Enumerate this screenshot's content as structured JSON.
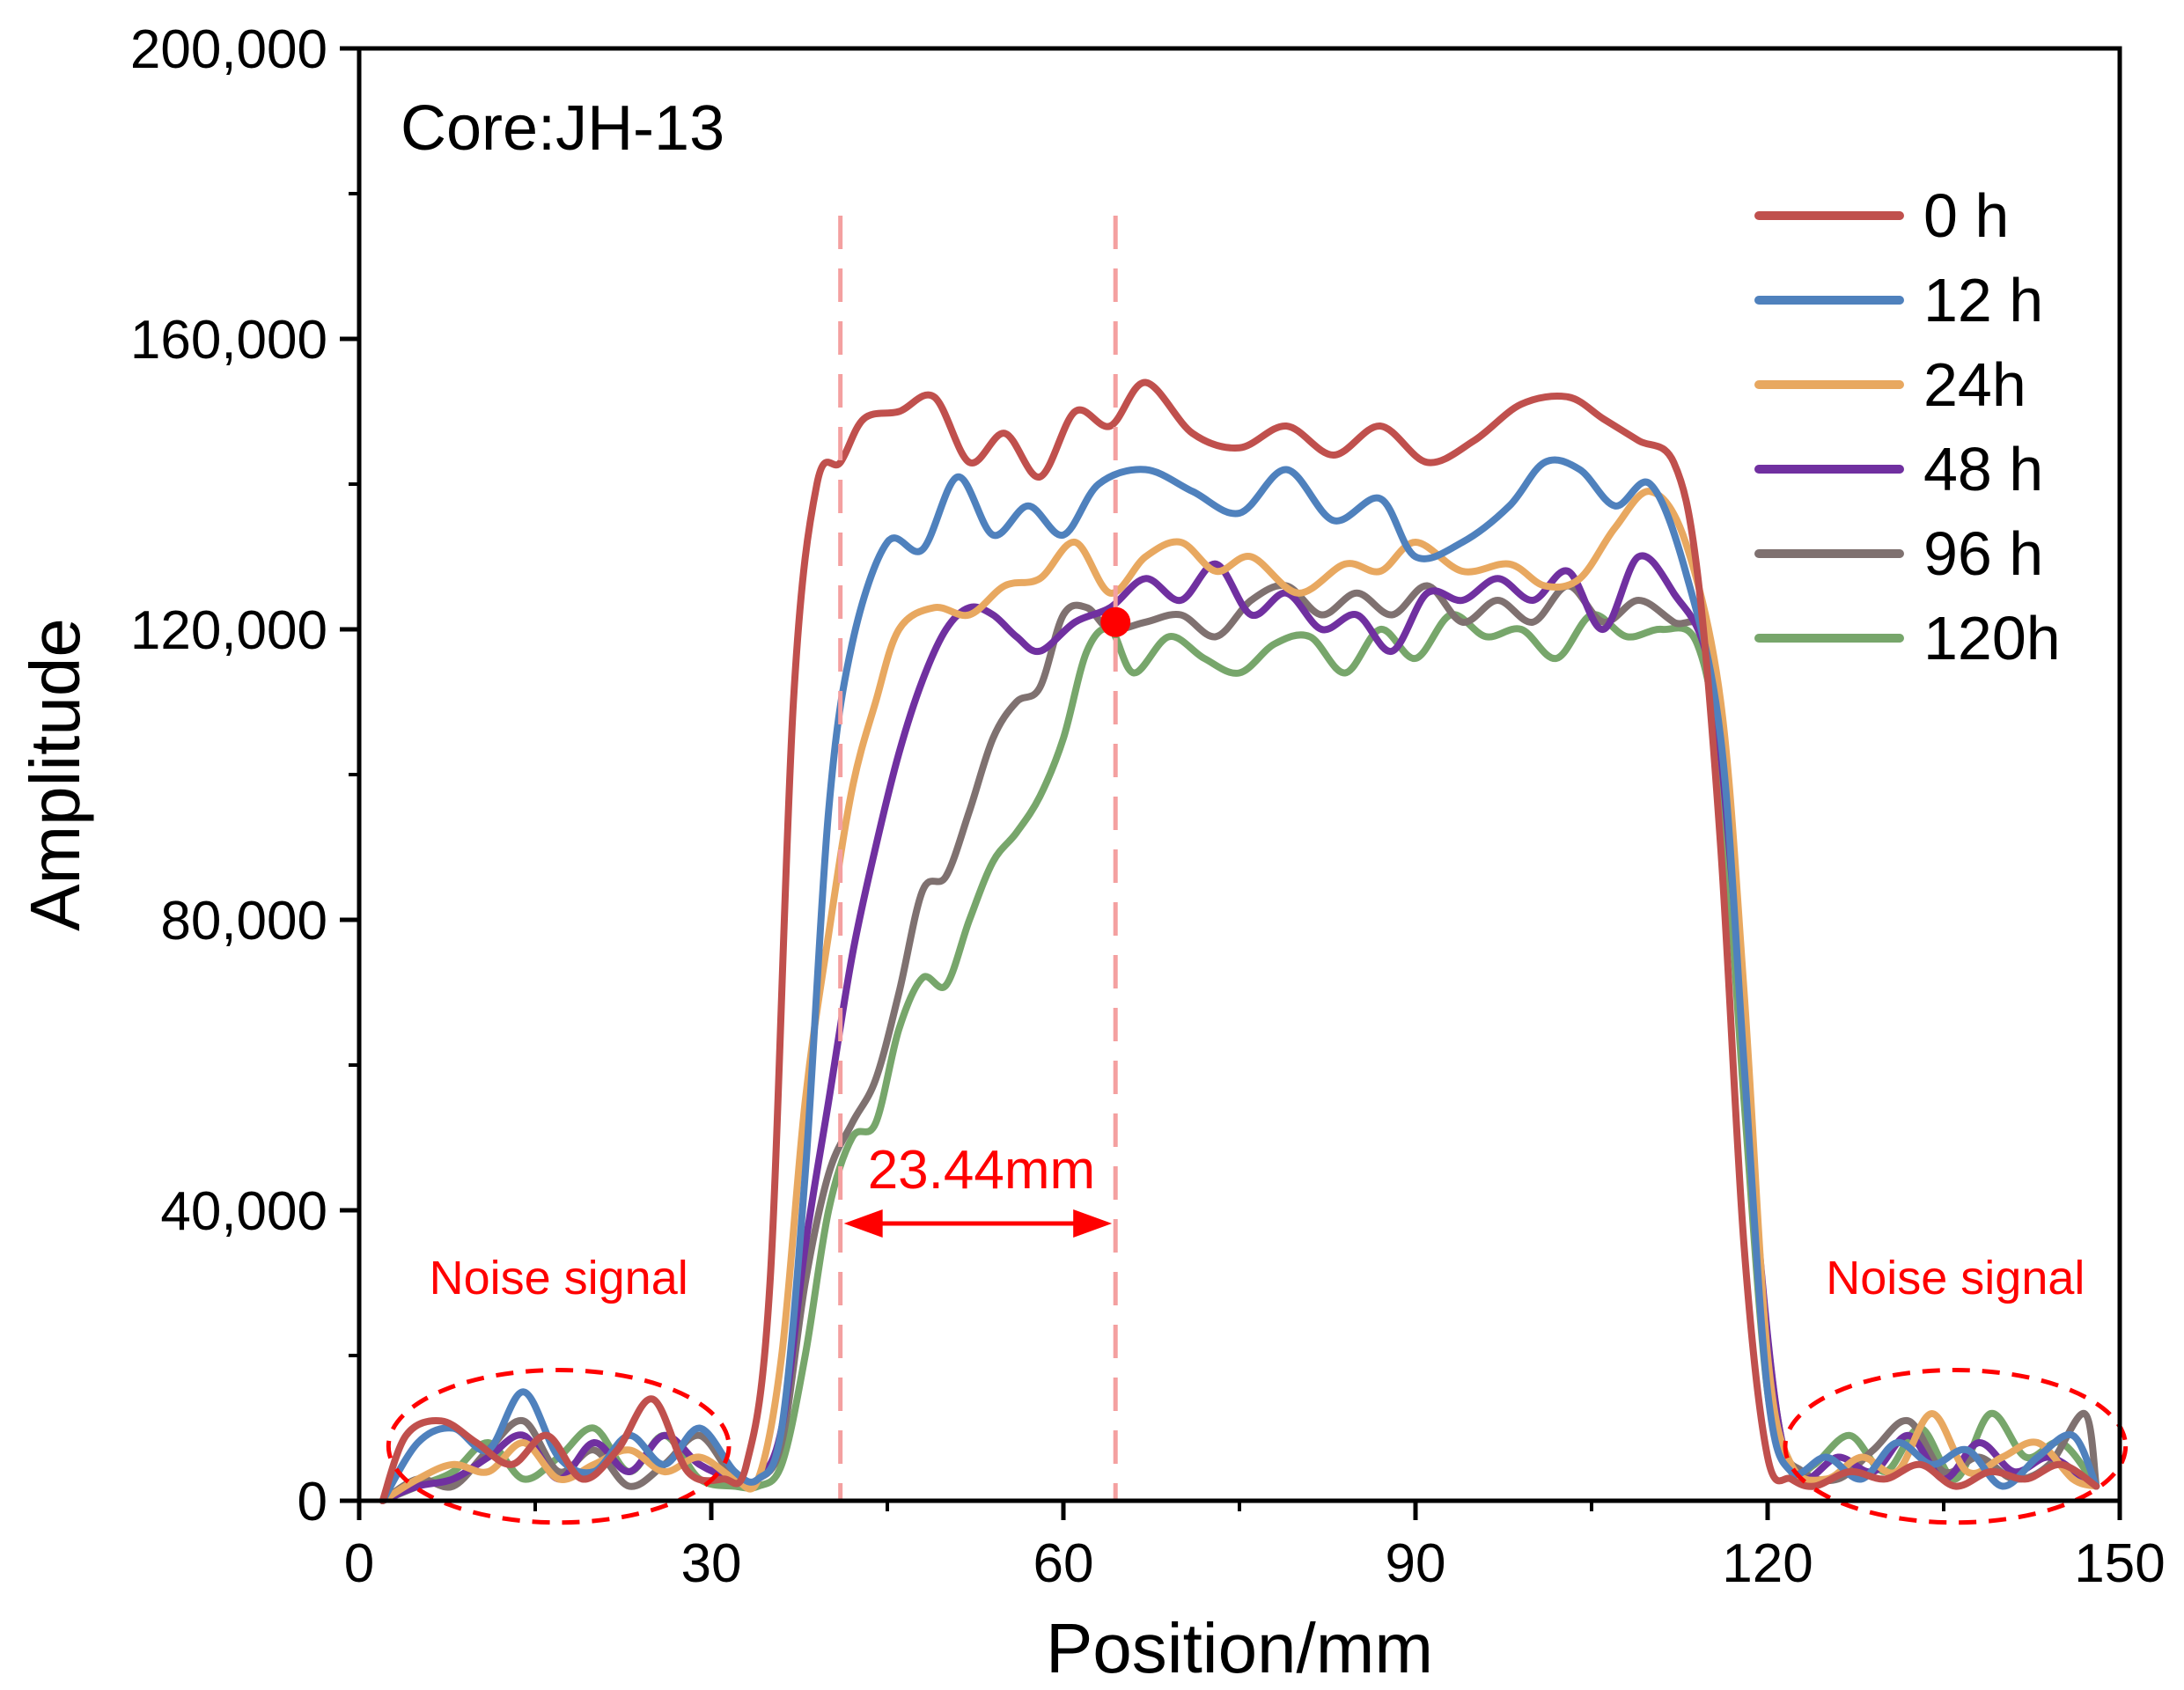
{
  "chart_data": {
    "type": "line",
    "title": "Core:JH-13",
    "xlabel": "Position/mm",
    "ylabel": "Amplitude",
    "xlim": [
      0,
      150
    ],
    "ylim": [
      0,
      200000
    ],
    "xticks": [
      0,
      30,
      60,
      90,
      120,
      150
    ],
    "yticks": [
      0,
      40000,
      80000,
      120000,
      160000,
      200000
    ],
    "xtick_labels": [
      "0",
      "30",
      "60",
      "90",
      "120",
      "150"
    ],
    "ytick_labels": [
      "0",
      "40,000",
      "80,000",
      "120,000",
      "160,000",
      "200,000"
    ],
    "legend_position": "top-right",
    "series": [
      {
        "name": "0 h",
        "color": "#c0504d",
        "x": [
          2,
          4,
          7,
          10,
          13,
          16,
          19,
          22,
          25,
          28,
          31,
          33,
          35,
          37,
          39,
          41,
          43,
          46,
          49,
          52,
          55,
          58,
          61,
          64,
          67,
          71,
          75,
          79,
          83,
          87,
          91,
          95,
          99,
          103,
          106,
          109,
          112,
          114,
          116,
          118,
          120,
          122,
          124,
          127,
          130,
          133,
          136,
          139,
          142,
          145,
          148
        ],
        "y": [
          0,
          9000,
          11000,
          8000,
          5000,
          9000,
          3000,
          7000,
          14000,
          4000,
          3000,
          5000,
          30000,
          110000,
          140000,
          143000,
          149000,
          150000,
          152000,
          143000,
          147000,
          141000,
          150000,
          148000,
          154000,
          147000,
          145000,
          148000,
          144000,
          148000,
          143000,
          146000,
          151000,
          152000,
          149000,
          146000,
          143000,
          128000,
          90000,
          35000,
          6000,
          3000,
          2000,
          4000,
          3000,
          5000,
          2000,
          4000,
          3000,
          5000,
          2000
        ]
      },
      {
        "name": "12 h",
        "color": "#4f81bd",
        "x": [
          2,
          5,
          8,
          11,
          14,
          17,
          20,
          23,
          26,
          29,
          32,
          34,
          36,
          38,
          40,
          42,
          45,
          48,
          51,
          54,
          57,
          60,
          63,
          67,
          71,
          75,
          79,
          83,
          87,
          90,
          94,
          98,
          101,
          104,
          107,
          110,
          113,
          116,
          118,
          120,
          122,
          125,
          128,
          131,
          134,
          137,
          140,
          143,
          146,
          148
        ],
        "y": [
          0,
          8000,
          10000,
          7000,
          15000,
          6000,
          4000,
          9000,
          5000,
          10000,
          4000,
          3000,
          10000,
          45000,
          95000,
          118000,
          132000,
          131000,
          141000,
          133000,
          137000,
          133000,
          140000,
          142000,
          139000,
          136000,
          142000,
          135000,
          138000,
          130000,
          132000,
          137000,
          143000,
          142000,
          137000,
          140000,
          128000,
          105000,
          60000,
          15000,
          4000,
          6000,
          3000,
          8000,
          5000,
          7000,
          2000,
          6000,
          9000,
          2000
        ]
      },
      {
        "name": "24h",
        "color": "#e8a860",
        "x": [
          2,
          5,
          8,
          11,
          14,
          17,
          20,
          23,
          26,
          29,
          32,
          34,
          36,
          38,
          40,
          42,
          44,
          46,
          49,
          52,
          55,
          58,
          61,
          64,
          67,
          70,
          73,
          76,
          80,
          84,
          87,
          90,
          94,
          98,
          101,
          104,
          107,
          110,
          113,
          116,
          118,
          120,
          122,
          125,
          128,
          131,
          134,
          137,
          140,
          143,
          146,
          148
        ],
        "y": [
          0,
          3000,
          5000,
          4000,
          8000,
          3000,
          5000,
          7000,
          4000,
          6000,
          3000,
          3000,
          20000,
          55000,
          78000,
          98000,
          110000,
          120000,
          123000,
          122000,
          126000,
          127000,
          132000,
          125000,
          130000,
          132000,
          128000,
          130000,
          125000,
          129000,
          128000,
          132000,
          128000,
          129000,
          126000,
          127000,
          134000,
          139000,
          132000,
          110000,
          70000,
          20000,
          5000,
          3000,
          6000,
          4000,
          12000,
          4000,
          6000,
          8000,
          3000,
          2000
        ]
      },
      {
        "name": "48 h",
        "color": "#7030a0",
        "x": [
          2,
          5,
          8,
          11,
          14,
          17,
          20,
          23,
          26,
          29,
          32,
          34,
          36,
          38,
          40,
          42,
          44,
          46,
          48,
          50,
          52,
          54,
          56,
          58,
          61,
          64,
          67,
          70,
          73,
          76,
          79,
          82,
          85,
          88,
          91,
          94,
          97,
          100,
          103,
          106,
          109,
          112,
          115,
          117,
          119,
          121,
          123,
          126,
          129,
          132,
          135,
          138,
          141,
          144,
          147,
          148
        ],
        "y": [
          0,
          2000,
          3000,
          6000,
          9000,
          3000,
          8000,
          4000,
          9000,
          5000,
          3000,
          3000,
          10000,
          35000,
          55000,
          75000,
          90000,
          103000,
          113000,
          120000,
          123000,
          122000,
          119000,
          117000,
          121000,
          123000,
          127000,
          124000,
          129000,
          122000,
          125000,
          120000,
          122000,
          117000,
          125000,
          124000,
          127000,
          124000,
          128000,
          120000,
          130000,
          125000,
          115000,
          85000,
          40000,
          10000,
          3000,
          6000,
          4000,
          9000,
          3000,
          8000,
          4000,
          6000,
          3000,
          2000
        ]
      },
      {
        "name": "96 h",
        "color": "#7f7170",
        "x": [
          2,
          5,
          8,
          11,
          14,
          17,
          20,
          23,
          26,
          29,
          32,
          34,
          36,
          38,
          40,
          42,
          44,
          46,
          48,
          50,
          52,
          54,
          56,
          58,
          60,
          62,
          64,
          67,
          70,
          73,
          76,
          79,
          82,
          85,
          88,
          91,
          94,
          97,
          100,
          103,
          106,
          109,
          112,
          115,
          117,
          119,
          121,
          123,
          126,
          129,
          132,
          135,
          138,
          141,
          144,
          147,
          148
        ],
        "y": [
          0,
          3000,
          2000,
          7000,
          11000,
          4000,
          7000,
          2000,
          5000,
          9000,
          3000,
          3000,
          8000,
          30000,
          45000,
          52000,
          58000,
          70000,
          84000,
          86000,
          95000,
          105000,
          110000,
          112000,
          122000,
          123000,
          120000,
          121000,
          122000,
          119000,
          124000,
          126000,
          122000,
          125000,
          122000,
          126000,
          121000,
          124000,
          121000,
          126000,
          121000,
          124000,
          121000,
          118000,
          90000,
          40000,
          10000,
          4000,
          3000,
          7000,
          11000,
          4000,
          6000,
          3000,
          5000,
          12000,
          2000
        ]
      },
      {
        "name": "120h",
        "color": "#77a66b",
        "x": [
          2,
          5,
          8,
          11,
          14,
          17,
          20,
          23,
          26,
          29,
          32,
          34,
          36,
          38,
          40,
          42,
          44,
          46,
          48,
          50,
          52,
          54,
          56,
          58,
          60,
          62,
          64,
          66,
          69,
          72,
          75,
          78,
          81,
          84,
          87,
          90,
          93,
          96,
          99,
          102,
          105,
          108,
          111,
          114,
          116,
          118,
          120,
          122,
          124,
          127,
          130,
          133,
          136,
          139,
          142,
          145,
          148
        ],
        "y": [
          0,
          2000,
          4000,
          8000,
          3000,
          6000,
          10000,
          4000,
          9000,
          3000,
          2000,
          2000,
          5000,
          20000,
          40000,
          50000,
          52000,
          65000,
          72000,
          71000,
          80000,
          88000,
          92000,
          97000,
          105000,
          117000,
          120000,
          114000,
          119000,
          116000,
          114000,
          118000,
          119000,
          114000,
          120000,
          116000,
          122000,
          119000,
          120000,
          116000,
          122000,
          119000,
          120000,
          118000,
          100000,
          55000,
          15000,
          4000,
          5000,
          9000,
          4000,
          10000,
          3000,
          12000,
          6000,
          8000,
          2000
        ]
      }
    ],
    "annotations": {
      "dashed_lines_x": [
        41,
        64.44
      ],
      "marker_point": {
        "x": 64.44,
        "y": 121000,
        "color": "#ff0000"
      },
      "arrow_label": "23.44mm",
      "noise_left": {
        "label": "Noise signal",
        "cx": 17,
        "cy": 7500,
        "rx": 14.5,
        "ry": 10500
      },
      "noise_right": {
        "label": "Noise signal",
        "cx": 136,
        "cy": 7500,
        "rx": 14.5,
        "ry": 10500
      },
      "annotation_color": "#ff0000",
      "dashed_color": "#f4a0a0"
    }
  }
}
